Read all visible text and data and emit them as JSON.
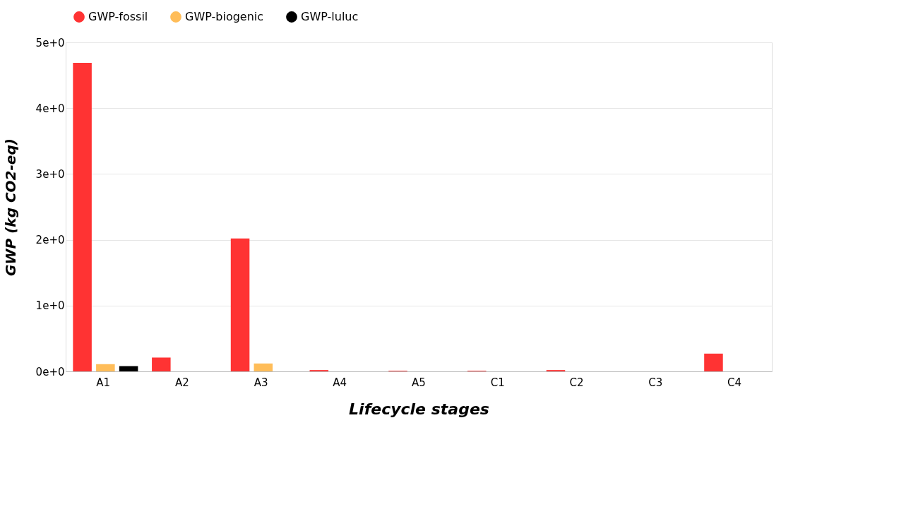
{
  "chart_data": {
    "type": "bar",
    "xlabel": "Lifecycle stages",
    "ylabel": "GWP (kg CO2-eq)",
    "categories": [
      "A1",
      "A2",
      "A3",
      "A4",
      "A5",
      "C1",
      "C2",
      "C3",
      "C4"
    ],
    "series": [
      {
        "name": "GWP-fossil",
        "color": "#ff3333",
        "values": [
          4.69,
          0.21,
          2.02,
          0.02,
          0.01,
          0.01,
          0.02,
          0,
          0.27
        ]
      },
      {
        "name": "GWP-biogenic",
        "color": "#ffbd59",
        "values": [
          0.11,
          0,
          0.12,
          0,
          0,
          0,
          0,
          0,
          0
        ]
      },
      {
        "name": "GWP-luluc",
        "color": "#000000",
        "values": [
          0.08,
          0,
          0,
          0,
          0,
          0,
          0,
          0,
          0
        ]
      }
    ],
    "ylim": [
      0,
      5
    ],
    "yticks": [
      {
        "value": 0,
        "label": "0e+0"
      },
      {
        "value": 1,
        "label": "1e+0"
      },
      {
        "value": 2,
        "label": "2e+0"
      },
      {
        "value": 3,
        "label": "3e+0"
      },
      {
        "value": 4,
        "label": "4e+0"
      },
      {
        "value": 5,
        "label": "5e+0"
      }
    ],
    "grid": "y",
    "legend": "top"
  }
}
